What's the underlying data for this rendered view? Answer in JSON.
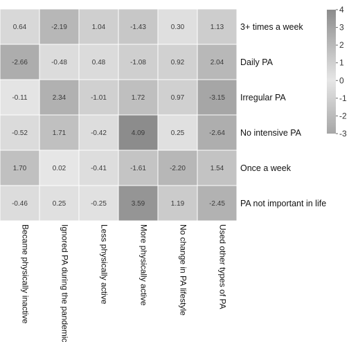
{
  "chart_data": {
    "type": "heatmap",
    "rows": [
      "3+ times a week",
      "Daily PA",
      "Irregular PA",
      "No intensive PA",
      "Once a week",
      "PA not important in life"
    ],
    "columns": [
      "Became physically inactive",
      "Ignored PA during the pandemic",
      "Less physically active",
      "More physically active",
      "No change in PA lifestyle",
      "Used other types of PA"
    ],
    "values": [
      [
        0.64,
        -2.19,
        1.04,
        -1.43,
        0.3,
        1.13
      ],
      [
        -2.66,
        -0.48,
        0.48,
        -1.08,
        0.92,
        2.04
      ],
      [
        -0.11,
        2.34,
        -1.01,
        1.72,
        0.97,
        -3.15
      ],
      [
        -0.52,
        1.71,
        -0.42,
        4.09,
        0.25,
        -2.64
      ],
      [
        1.7,
        0.02,
        -0.41,
        -1.61,
        -2.2,
        1.54
      ],
      [
        -0.46,
        0.25,
        -0.25,
        3.59,
        1.19,
        -2.45
      ]
    ],
    "value_labels": [
      [
        "0.64",
        "-2.19",
        "1.04",
        "-1.43",
        "0.30",
        "1.13"
      ],
      [
        "-2.66",
        "-0.48",
        "0.48",
        "-1.08",
        "0.92",
        "2.04"
      ],
      [
        "-0.11",
        "2.34",
        "-1.01",
        "1.72",
        "0.97",
        "-3.15"
      ],
      [
        "-0.52",
        "1.71",
        "-0.42",
        "4.09",
        "0.25",
        "-2.64"
      ],
      [
        "1.70",
        "0.02",
        "-0.41",
        "-1.61",
        "-2.20",
        "1.54"
      ],
      [
        "-0.46",
        "0.25",
        "-0.25",
        "3.59",
        "1.19",
        "-2.45"
      ]
    ],
    "color_range": [
      -3,
      4
    ],
    "color_scale": {
      "max_color": "#8c8c8c",
      "zero_color": "#e6e6e6",
      "min_color": "#a6a6a6"
    },
    "legend": {
      "position": "right",
      "ticks": [
        4,
        3,
        2,
        1,
        0,
        -1,
        -2,
        -3
      ]
    },
    "grid": true
  }
}
